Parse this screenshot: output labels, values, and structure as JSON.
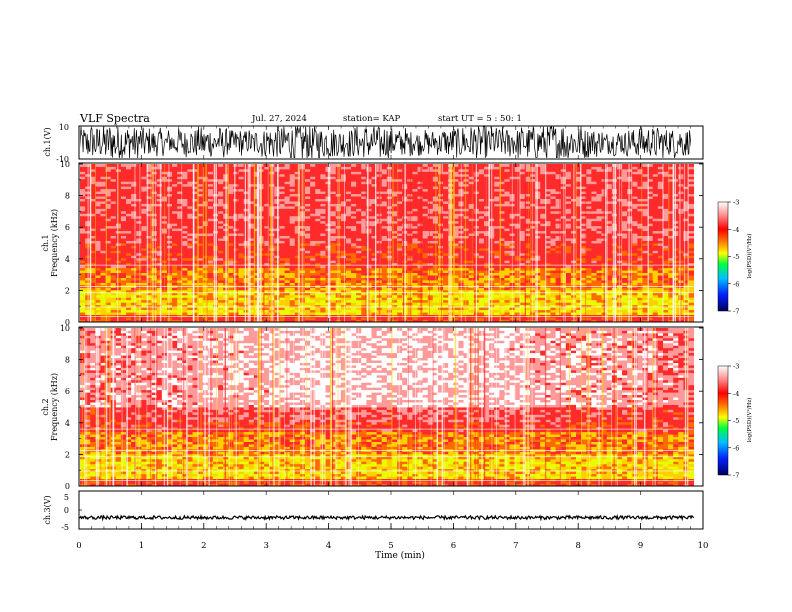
{
  "header": {
    "title": "VLF Spectra",
    "date": "Jul. 27, 2024",
    "station": "station= KAP",
    "start": "start UT =  5 : 50: 1"
  },
  "chart_data": [
    {
      "id": "waveform-ch1",
      "type": "line",
      "ylabel": "ch.1(V)",
      "ylim": [
        -10,
        10
      ],
      "yticklabels": [
        "10",
        "-10"
      ],
      "xlim": [
        0,
        10
      ],
      "description": "dense broadband waveform, amplitude mostly between -10 and 10 V"
    },
    {
      "id": "spectrogram-ch1",
      "type": "heatmap",
      "ylabel_lines": [
        "ch.1",
        "Frequency (kHz)"
      ],
      "ylim": [
        0,
        10
      ],
      "yticks": [
        0,
        2,
        4,
        6,
        8,
        10
      ],
      "xlim": [
        0,
        9.85
      ],
      "bands": [
        {
          "from": 0.5,
          "to": 0.8,
          "level": "yellow"
        },
        {
          "from": 1.0,
          "to": 2.0,
          "level": "yellow-green"
        },
        {
          "from": 2.0,
          "to": 3.5,
          "level": "orange-yellow"
        },
        {
          "from": 3.5,
          "to": 10,
          "level": "red-white"
        }
      ],
      "colorbar": {
        "label": "log(PSD)(V²/Hz)",
        "range": [
          -7,
          -3
        ],
        "ticks": [
          "-3",
          "-4",
          "-5",
          "-6",
          "-7"
        ]
      }
    },
    {
      "id": "spectrogram-ch2",
      "type": "heatmap",
      "ylabel_lines": [
        "ch.2",
        "Frequency (kHz)"
      ],
      "ylim": [
        0,
        10
      ],
      "yticks": [
        0,
        2,
        4,
        6,
        8,
        10
      ],
      "xlim": [
        0,
        9.85
      ],
      "bands": [
        {
          "from": 0.5,
          "to": 0.8,
          "level": "yellow"
        },
        {
          "from": 1.0,
          "to": 2.0,
          "level": "yellow-green"
        },
        {
          "from": 2.0,
          "to": 3.5,
          "level": "orange-yellow"
        },
        {
          "from": 3.5,
          "to": 10,
          "level": "red-white"
        }
      ],
      "colorbar": {
        "label": "log(PSD)(V²/Hz)",
        "range": [
          -7,
          -3
        ],
        "ticks": [
          "-3",
          "-4",
          "-5",
          "-6",
          "-7"
        ]
      }
    },
    {
      "id": "waveform-ch3",
      "type": "line",
      "ylabel": "ch.3(V)",
      "ylim": [
        -5,
        5
      ],
      "yticklabels": [
        "5",
        "0",
        "-5"
      ],
      "xlim": [
        0,
        10
      ],
      "xlabel": "Time (min)",
      "xticks": [
        0,
        1,
        2,
        3,
        4,
        5,
        6,
        7,
        8,
        9,
        10
      ],
      "description": "thin steady band at about -2 V"
    }
  ],
  "colors": {
    "waveform": "#000000",
    "colormap": [
      "#000080",
      "#0000ff",
      "#00a0ff",
      "#00ff80",
      "#80ff00",
      "#ffff00",
      "#ff8000",
      "#ff0000",
      "#ff8080",
      "#ffffff"
    ]
  }
}
